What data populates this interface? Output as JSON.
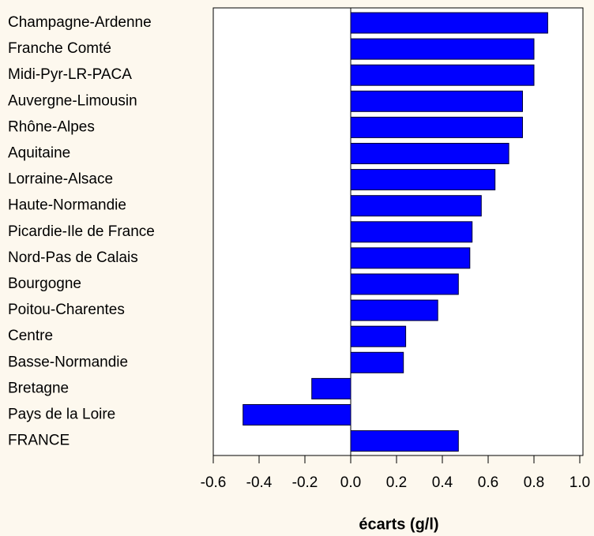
{
  "chart_data": {
    "type": "barh",
    "x_label": "écarts (g/l)",
    "categories": [
      "Champagne-Ardenne",
      "Franche Comté",
      "Midi-Pyr-LR-PACA",
      "Auvergne-Limousin",
      "Rhône-Alpes",
      "Aquitaine",
      "Lorraine-Alsace",
      "Haute-Normandie",
      "Picardie-Ile de France",
      "Nord-Pas de Calais",
      "Bourgogne",
      "Poitou-Charentes",
      "Centre",
      "Basse-Normandie",
      "Bretagne",
      "Pays de la Loire",
      "FRANCE"
    ],
    "values": [
      0.86,
      0.8,
      0.8,
      0.75,
      0.75,
      0.69,
      0.63,
      0.57,
      0.53,
      0.52,
      0.47,
      0.38,
      0.24,
      0.23,
      -0.17,
      -0.47,
      0.47
    ],
    "color": "#0000ff",
    "xlim": [
      -0.6,
      1.0
    ],
    "xticks": [
      -0.6,
      -0.4,
      -0.2,
      {
        "value": 0,
        "label": "0.0"
      },
      0.2,
      0.4,
      0.6,
      0.8,
      {
        "value": 1.0,
        "label": "1.0"
      }
    ],
    "grid": false
  }
}
